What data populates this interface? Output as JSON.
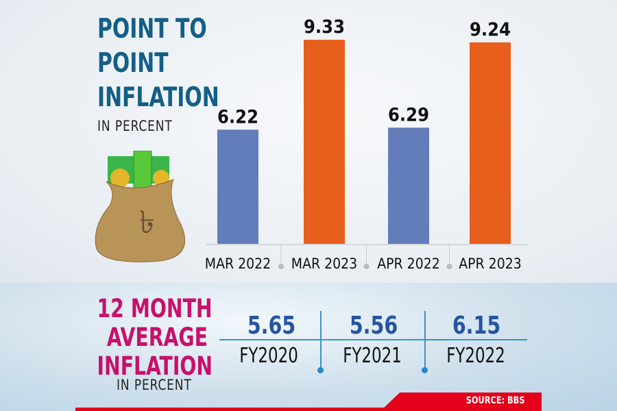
{
  "chart_data": [
    {
      "type": "bar",
      "title": "POINT TO\nPOINT\nINFLATION",
      "subtitle": "IN PERCENT",
      "categories": [
        "MAR 2022",
        "MAR 2023",
        "APR 2022",
        "APR 2023"
      ],
      "values": [
        6.22,
        9.33,
        6.29,
        9.24
      ],
      "data_labels": [
        "6.22",
        "9.33",
        "6.29",
        "9.24"
      ],
      "colors": [
        "#637dbb",
        "#e85e1c",
        "#637dbb",
        "#e85e1c"
      ],
      "grid": false
    },
    {
      "type": "table",
      "title": "12 MONTH\nAVERAGE\nINFLATION",
      "subtitle": "IN PERCENT",
      "categories": [
        "FY2020",
        "FY2021",
        "FY2022"
      ],
      "values": [
        5.65,
        5.56,
        6.15
      ],
      "data_labels": [
        "5.65",
        "5.56",
        "6.15"
      ]
    }
  ],
  "source": "SOURCE: BBS",
  "colors": {
    "title_top": "#135f86",
    "title_bottom": "#c8106b",
    "values_bottom": "#2654a3",
    "source_band": "#e3001b"
  },
  "illustration": "money-bag-taka-icon"
}
